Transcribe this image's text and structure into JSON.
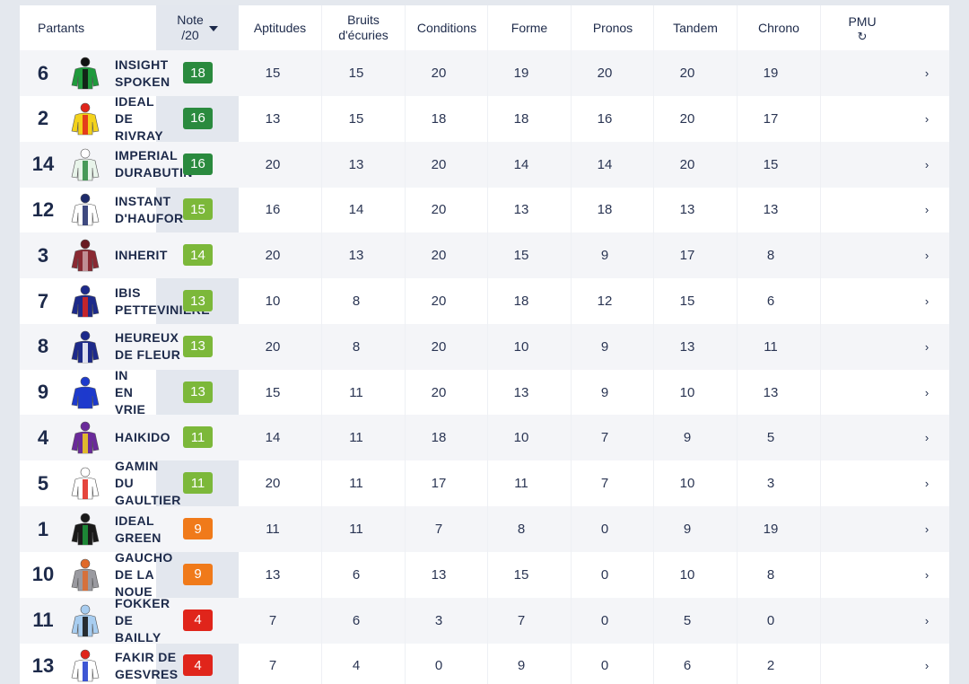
{
  "header": {
    "partants": "Partants",
    "note_line1": "Note",
    "note_line2": "/20",
    "aptitudes": "Aptitudes",
    "bruits_line1": "Bruits",
    "bruits_line2": "d'écuries",
    "conditions": "Conditions",
    "forme": "Forme",
    "pronos": "Pronos",
    "tandem": "Tandem",
    "chrono": "Chrono",
    "pmu": "PMU",
    "refresh_glyph": "↻",
    "chevron_glyph": "›"
  },
  "note_colors": {
    "green_dark": "#2a8a3e",
    "green_light": "#7cb83a",
    "orange": "#f07a1a",
    "red": "#e0251b"
  },
  "rows": [
    {
      "num": "6",
      "name": "INSIGHT\nSPOKEN",
      "note": "18",
      "note_color": "#2a8a3e",
      "silk": "green-black",
      "aptitudes": "15",
      "bruits": "15",
      "conditions": "20",
      "forme": "19",
      "pronos": "20",
      "tandem": "20",
      "chrono": "19"
    },
    {
      "num": "2",
      "name": "IDEAL\nDE\nRIVRAY",
      "note": "16",
      "note_color": "#2a8a3e",
      "silk": "yellow-red-chevrons",
      "aptitudes": "13",
      "bruits": "15",
      "conditions": "18",
      "forme": "18",
      "pronos": "16",
      "tandem": "20",
      "chrono": "17"
    },
    {
      "num": "14",
      "name": "IMPERIAL\nDURABUTIN",
      "note": "16",
      "note_color": "#2a8a3e",
      "silk": "green-white-check",
      "aptitudes": "20",
      "bruits": "13",
      "conditions": "20",
      "forme": "14",
      "pronos": "14",
      "tandem": "20",
      "chrono": "15"
    },
    {
      "num": "12",
      "name": "INSTANT\nD'HAUFOR",
      "note": "15",
      "note_color": "#7cb83a",
      "silk": "white-navy",
      "aptitudes": "16",
      "bruits": "14",
      "conditions": "20",
      "forme": "13",
      "pronos": "18",
      "tandem": "13",
      "chrono": "13"
    },
    {
      "num": "3",
      "name": "INHERIT",
      "note": "14",
      "note_color": "#7cb83a",
      "silk": "maroon-stripes",
      "aptitudes": "20",
      "bruits": "13",
      "conditions": "20",
      "forme": "15",
      "pronos": "9",
      "tandem": "17",
      "chrono": "8"
    },
    {
      "num": "7",
      "name": "IBIS\nPETTEVINIERE",
      "note": "13",
      "note_color": "#7cb83a",
      "silk": "navy-red-star",
      "aptitudes": "10",
      "bruits": "8",
      "conditions": "20",
      "forme": "18",
      "pronos": "12",
      "tandem": "15",
      "chrono": "6"
    },
    {
      "num": "8",
      "name": "HEUREUX\nDE FLEUR",
      "note": "13",
      "note_color": "#7cb83a",
      "silk": "navy-white-sash",
      "aptitudes": "20",
      "bruits": "8",
      "conditions": "20",
      "forme": "10",
      "pronos": "9",
      "tandem": "13",
      "chrono": "11"
    },
    {
      "num": "9",
      "name": "IN\nEN\nVRIE",
      "note": "13",
      "note_color": "#7cb83a",
      "silk": "royal-blue",
      "aptitudes": "15",
      "bruits": "11",
      "conditions": "20",
      "forme": "13",
      "pronos": "9",
      "tandem": "10",
      "chrono": "13"
    },
    {
      "num": "4",
      "name": "HAIKIDO",
      "note": "11",
      "note_color": "#7cb83a",
      "silk": "purple-yellow",
      "aptitudes": "14",
      "bruits": "11",
      "conditions": "18",
      "forme": "10",
      "pronos": "7",
      "tandem": "9",
      "chrono": "5"
    },
    {
      "num": "5",
      "name": "GAMIN\nDU\nGAULTIER",
      "note": "11",
      "note_color": "#7cb83a",
      "silk": "white-red-spots",
      "aptitudes": "20",
      "bruits": "11",
      "conditions": "17",
      "forme": "11",
      "pronos": "7",
      "tandem": "10",
      "chrono": "3"
    },
    {
      "num": "1",
      "name": "IDEAL\nGREEN",
      "note": "9",
      "note_color": "#f07a1a",
      "silk": "black-green",
      "aptitudes": "11",
      "bruits": "11",
      "conditions": "7",
      "forme": "8",
      "pronos": "0",
      "tandem": "9",
      "chrono": "19"
    },
    {
      "num": "10",
      "name": "GAUCHO\nDE LA\nNOUE",
      "note": "9",
      "note_color": "#f07a1a",
      "silk": "grey-orange",
      "aptitudes": "13",
      "bruits": "6",
      "conditions": "13",
      "forme": "15",
      "pronos": "0",
      "tandem": "10",
      "chrono": "8"
    },
    {
      "num": "11",
      "name": "FOKKER\nDE\nBAILLY",
      "note": "4",
      "note_color": "#e0251b",
      "silk": "lightblue-black",
      "aptitudes": "7",
      "bruits": "6",
      "conditions": "3",
      "forme": "7",
      "pronos": "0",
      "tandem": "5",
      "chrono": "0"
    },
    {
      "num": "13",
      "name": "FAKIR DE\nGESVRES",
      "note": "4",
      "note_color": "#e0251b",
      "silk": "tricolore",
      "aptitudes": "7",
      "bruits": "4",
      "conditions": "0",
      "forme": "9",
      "pronos": "0",
      "tandem": "6",
      "chrono": "2"
    }
  ]
}
